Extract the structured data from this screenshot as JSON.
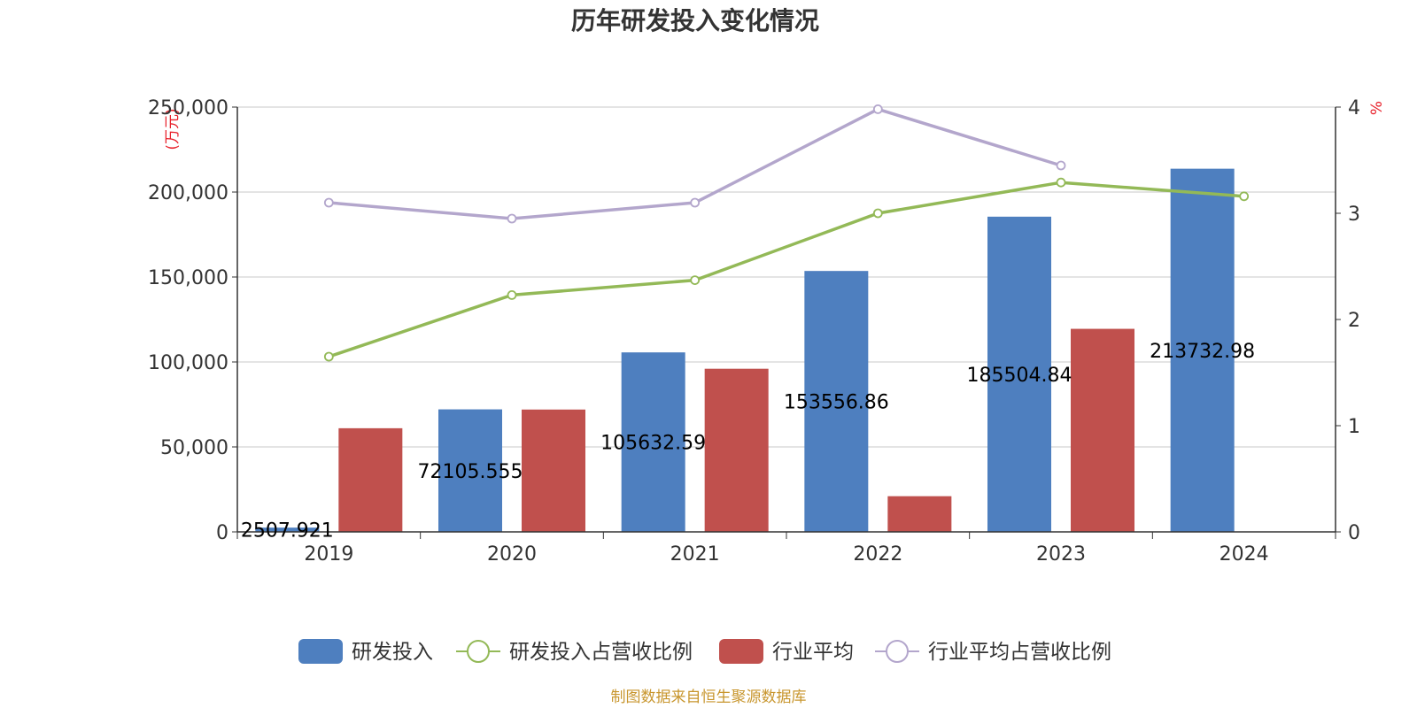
{
  "chart_data": {
    "type": "bar",
    "title": "历年研发投入变化情况",
    "categories": [
      "2019",
      "2020",
      "2021",
      "2022",
      "2023",
      "2024"
    ],
    "y_left": {
      "unit": "(万元)",
      "min": 0,
      "max": 250000,
      "ticks": [
        "0",
        "50,000",
        "100,000",
        "150,000",
        "200,000",
        "250,000"
      ]
    },
    "y_right": {
      "unit": "%",
      "min": 0,
      "max": 4,
      "ticks": [
        "0",
        "1",
        "2",
        "3",
        "4"
      ]
    },
    "series": [
      {
        "name": "研发投入",
        "kind": "bar",
        "axis": "left",
        "color": "#4e7fbf",
        "values": [
          2507.921,
          72105.555,
          105632.59,
          153556.86,
          185504.84,
          213732.98
        ],
        "labels": [
          "2507.921",
          "72105.555",
          "105632.59",
          "153556.86",
          "185504.84",
          "213732.98"
        ]
      },
      {
        "name": "研发投入占营收比例",
        "kind": "line",
        "axis": "right",
        "color": "#93b957",
        "values": [
          1.65,
          2.23,
          2.37,
          3.0,
          3.29,
          3.16
        ]
      },
      {
        "name": "行业平均",
        "kind": "bar",
        "axis": "left",
        "color": "#c0504d",
        "values": [
          61000,
          72000,
          96000,
          21000,
          119500,
          null
        ]
      },
      {
        "name": "行业平均占营收比例",
        "kind": "line",
        "axis": "right",
        "color": "#b3a6cc",
        "values": [
          3.1,
          2.95,
          3.1,
          3.98,
          3.45,
          null
        ]
      }
    ],
    "grid": true,
    "legend_position": "bottom"
  },
  "source": "制图数据来自恒生聚源数据库"
}
